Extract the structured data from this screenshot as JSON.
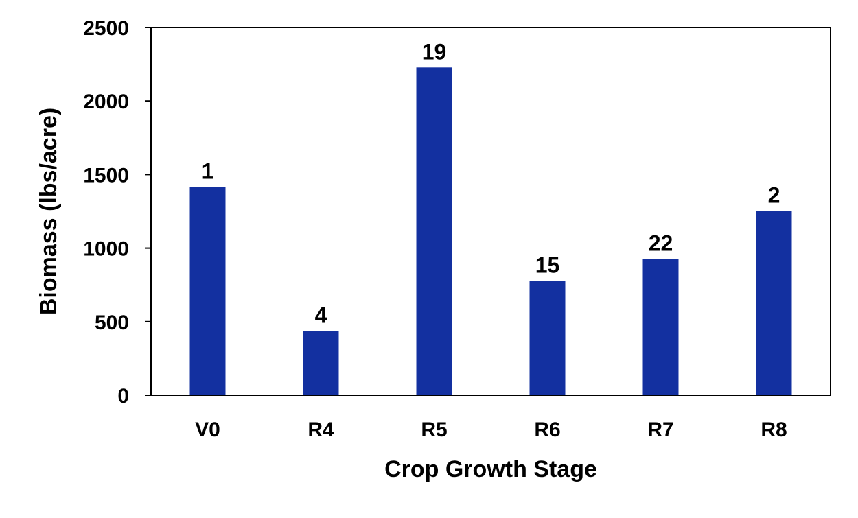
{
  "chart_data": {
    "type": "bar",
    "title": "",
    "xlabel": "Crop Growth Stage",
    "ylabel": "Biomass (lbs/acre)",
    "categories": [
      "V0",
      "R4",
      "R5",
      "R6",
      "R7",
      "R8"
    ],
    "values": [
      1415,
      435,
      2228,
      777,
      927,
      1252
    ],
    "data_labels": [
      "1",
      "4",
      "19",
      "15",
      "22",
      "2"
    ],
    "ylim": [
      0,
      2500
    ],
    "yticks": [
      0,
      500,
      1000,
      1500,
      2000,
      2500
    ],
    "grid": false,
    "legend": "none",
    "bar_color": "#1330A0"
  }
}
